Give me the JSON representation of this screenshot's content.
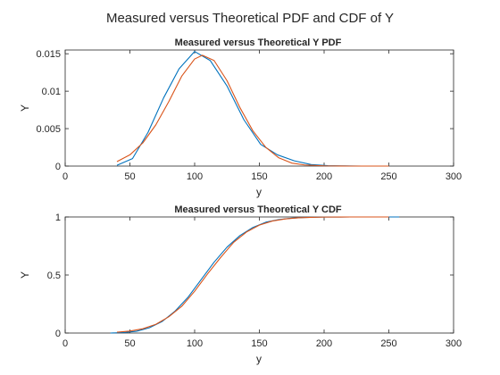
{
  "figure": {
    "title": "Measured versus Theoretical PDF and CDF of Y"
  },
  "colors": {
    "measured": "#0072BD",
    "theoretical": "#D95319",
    "axes": "#262626"
  },
  "chart_data": [
    {
      "type": "line",
      "title": "Measured versus Theoretical Y PDF",
      "xlabel": "y",
      "ylabel": "Y",
      "xlim": [
        0,
        300
      ],
      "ylim": [
        0,
        0.0155
      ],
      "grid": false,
      "x_ticks": [
        0,
        50,
        100,
        150,
        200,
        250,
        300
      ],
      "x_tick_labels": [
        "0",
        "50",
        "100",
        "150",
        "200",
        "250",
        "300"
      ],
      "y_ticks": [
        0,
        0.005,
        0.01,
        0.015
      ],
      "y_tick_labels": [
        "0",
        "0.005",
        "0.01",
        "0.015"
      ],
      "series": [
        {
          "color": "#0072BD",
          "x": [
            40,
            52,
            64,
            76,
            88,
            100,
            112,
            125,
            138,
            151,
            164,
            177,
            190,
            203,
            216,
            229,
            242,
            250
          ],
          "y": [
            0.0001,
            0.001,
            0.0045,
            0.0091,
            0.013,
            0.0153,
            0.0141,
            0.0107,
            0.0062,
            0.0029,
            0.0015,
            0.0007,
            0.0002,
            5e-05,
            2e-05,
            0,
            0,
            0
          ]
        },
        {
          "color": "#D95319",
          "x": [
            40,
            50,
            60,
            70,
            80,
            90,
            100,
            106,
            115,
            125,
            135,
            145,
            155,
            165,
            175,
            185,
            200,
            220,
            250
          ],
          "y": [
            0.0006,
            0.0015,
            0.0031,
            0.0055,
            0.0086,
            0.012,
            0.0143,
            0.0148,
            0.0141,
            0.0114,
            0.0078,
            0.0047,
            0.0025,
            0.0011,
            0.0004,
            0.00015,
            3e-05,
            0,
            0
          ]
        }
      ]
    },
    {
      "type": "line",
      "title": "Measured versus Theoretical Y CDF",
      "xlabel": "y",
      "ylabel": "Y",
      "xlim": [
        0,
        300
      ],
      "ylim": [
        0,
        1
      ],
      "grid": false,
      "x_ticks": [
        0,
        50,
        100,
        150,
        200,
        250,
        300
      ],
      "x_tick_labels": [
        "0",
        "50",
        "100",
        "150",
        "200",
        "250",
        "300"
      ],
      "y_ticks": [
        0,
        0.5,
        1
      ],
      "y_tick_labels": [
        "0",
        "0.5",
        "1"
      ],
      "series": [
        {
          "color": "#0072BD",
          "x": [
            35,
            45,
            55,
            65,
            75,
            85,
            95,
            105,
            115,
            125,
            135,
            145,
            155,
            165,
            175,
            185,
            200,
            220,
            240,
            258
          ],
          "y": [
            0,
            0.004,
            0.015,
            0.045,
            0.1,
            0.19,
            0.31,
            0.46,
            0.61,
            0.74,
            0.84,
            0.91,
            0.955,
            0.978,
            0.99,
            0.996,
            0.999,
            1,
            1,
            1
          ]
        },
        {
          "color": "#D95319",
          "x": [
            40,
            50,
            60,
            70,
            80,
            90,
            100,
            110,
            120,
            130,
            140,
            150,
            160,
            170,
            180,
            190,
            200,
            220,
            250
          ],
          "y": [
            0.007,
            0.017,
            0.037,
            0.075,
            0.14,
            0.23,
            0.36,
            0.51,
            0.65,
            0.78,
            0.87,
            0.93,
            0.965,
            0.983,
            0.993,
            0.997,
            0.999,
            1,
            1
          ]
        }
      ]
    }
  ]
}
